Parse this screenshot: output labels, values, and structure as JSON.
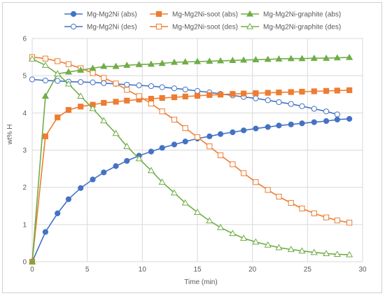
{
  "chart_data": {
    "type": "line",
    "title": "",
    "xlabel": "Time (min)",
    "ylabel": "wt% H",
    "xlim": [
      0,
      30
    ],
    "ylim": [
      0,
      6
    ],
    "xticks": [
      0,
      5,
      10,
      15,
      20,
      25,
      30
    ],
    "yticks": [
      0,
      1,
      2,
      3,
      4,
      5,
      6
    ],
    "grid": true,
    "legend_position": "top",
    "series": [
      {
        "name": "Mg-Mg2Ni (abs)",
        "color": "#4472c4",
        "marker": "circle",
        "filled": true,
        "x": [
          0,
          1.2,
          2.3,
          3.3,
          4.4,
          5.5,
          6.5,
          7.6,
          8.6,
          9.7,
          10.8,
          11.8,
          12.9,
          13.9,
          15.0,
          16.1,
          17.1,
          18.2,
          19.2,
          20.3,
          21.4,
          22.4,
          23.5,
          24.5,
          25.6,
          26.7,
          27.7,
          28.8
        ],
        "y": [
          0,
          0.8,
          1.3,
          1.68,
          1.98,
          2.21,
          2.4,
          2.57,
          2.71,
          2.85,
          2.96,
          3.06,
          3.15,
          3.23,
          3.31,
          3.37,
          3.43,
          3.48,
          3.53,
          3.58,
          3.62,
          3.66,
          3.69,
          3.72,
          3.75,
          3.78,
          3.82,
          3.84
        ]
      },
      {
        "name": "Mg-Mg2Ni (des)",
        "color": "#4472c4",
        "marker": "circle",
        "filled": false,
        "x": [
          0,
          1.2,
          2.3,
          3.3,
          4.4,
          5.5,
          6.5,
          7.6,
          8.6,
          9.7,
          10.8,
          11.8,
          12.9,
          13.9,
          15.0,
          16.1,
          17.1,
          18.2,
          19.2,
          20.3,
          21.4,
          22.4,
          23.5,
          24.5,
          25.6,
          26.7,
          27.7
        ],
        "y": [
          4.9,
          4.87,
          4.86,
          4.84,
          4.83,
          4.82,
          4.8,
          4.78,
          4.76,
          4.74,
          4.72,
          4.69,
          4.66,
          4.63,
          4.59,
          4.55,
          4.51,
          4.47,
          4.43,
          4.39,
          4.34,
          4.29,
          4.24,
          4.18,
          4.11,
          4.04,
          3.96
        ]
      },
      {
        "name": "Mg-Mg2Ni-soot (abs)",
        "color": "#ed7d31",
        "marker": "square",
        "filled": true,
        "x": [
          0,
          1.2,
          2.3,
          3.3,
          4.4,
          5.5,
          6.5,
          7.6,
          8.6,
          9.7,
          10.8,
          11.8,
          12.9,
          13.9,
          15.0,
          16.1,
          17.1,
          18.2,
          19.2,
          20.3,
          21.4,
          22.4,
          23.5,
          24.5,
          25.6,
          26.7,
          27.7,
          28.8
        ],
        "y": [
          0,
          3.37,
          3.88,
          4.08,
          4.17,
          4.22,
          4.27,
          4.3,
          4.33,
          4.36,
          4.38,
          4.4,
          4.42,
          4.44,
          4.46,
          4.48,
          4.49,
          4.51,
          4.52,
          4.53,
          4.54,
          4.55,
          4.56,
          4.57,
          4.58,
          4.59,
          4.6,
          4.61
        ]
      },
      {
        "name": "Mg-Mg2Ni-soot (des)",
        "color": "#ed7d31",
        "marker": "square",
        "filled": false,
        "x": [
          0,
          1.2,
          2.3,
          3.3,
          4.4,
          5.5,
          6.5,
          7.6,
          8.6,
          9.7,
          10.8,
          11.8,
          12.9,
          13.9,
          15.0,
          16.1,
          17.1,
          18.2,
          19.2,
          20.3,
          21.4,
          22.4,
          23.5,
          24.5,
          25.6,
          26.7,
          27.7,
          28.8
        ],
        "y": [
          5.5,
          5.46,
          5.39,
          5.31,
          5.2,
          5.07,
          4.94,
          4.79,
          4.62,
          4.45,
          4.25,
          4.04,
          3.82,
          3.59,
          3.35,
          3.1,
          2.86,
          2.62,
          2.38,
          2.14,
          1.93,
          1.75,
          1.58,
          1.43,
          1.3,
          1.19,
          1.11,
          1.05
        ]
      },
      {
        "name": "Mg-Mg2Ni-graphite (abs)",
        "color": "#70ad47",
        "marker": "triangle",
        "filled": true,
        "x": [
          0,
          1.2,
          2.3,
          3.3,
          4.4,
          5.5,
          6.5,
          7.6,
          8.6,
          9.7,
          10.8,
          11.8,
          12.9,
          13.9,
          15.0,
          16.1,
          17.1,
          18.2,
          19.2,
          20.3,
          21.4,
          22.4,
          23.5,
          24.5,
          25.6,
          26.7,
          27.7,
          28.8
        ],
        "y": [
          0,
          4.45,
          5.05,
          5.1,
          5.15,
          5.2,
          5.25,
          5.25,
          5.28,
          5.3,
          5.31,
          5.33,
          5.36,
          5.37,
          5.38,
          5.39,
          5.4,
          5.41,
          5.42,
          5.43,
          5.44,
          5.45,
          5.46,
          5.46,
          5.47,
          5.47,
          5.48,
          5.49
        ]
      },
      {
        "name": "Mg-Mg2Ni-graphite (des)",
        "color": "#70ad47",
        "marker": "triangle",
        "filled": false,
        "x": [
          0,
          1.2,
          2.3,
          3.3,
          4.4,
          5.5,
          6.5,
          7.6,
          8.6,
          9.7,
          10.8,
          11.8,
          12.9,
          13.9,
          15.0,
          16.1,
          17.1,
          18.2,
          19.2,
          20.3,
          21.4,
          22.4,
          23.5,
          24.5,
          25.6,
          26.7,
          27.7,
          28.8
        ],
        "y": [
          5.45,
          5.28,
          5.05,
          4.78,
          4.45,
          4.12,
          3.79,
          3.45,
          3.1,
          2.77,
          2.45,
          2.14,
          1.85,
          1.58,
          1.33,
          1.1,
          0.92,
          0.76,
          0.63,
          0.53,
          0.45,
          0.38,
          0.33,
          0.29,
          0.25,
          0.22,
          0.2,
          0.19
        ]
      }
    ]
  }
}
